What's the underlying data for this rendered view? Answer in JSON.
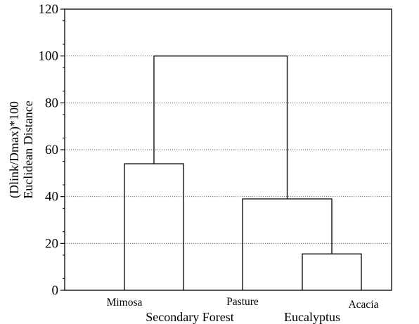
{
  "chart_data": {
    "type": "dendrogram",
    "ylabel_line1": "(Dlink/Dmax)*100",
    "ylabel_line2": "Euclidean Distance",
    "ylim": [
      0,
      120
    ],
    "yticks": [
      0,
      20,
      40,
      60,
      80,
      100,
      120
    ],
    "grid": "horizontal dotted",
    "leaves": [
      "Mimosa",
      "Secondary Forest",
      "Pasture",
      "Eucalyptus",
      "Acacia"
    ],
    "top_leaf_labels": [
      "Mimosa",
      "Pasture",
      "Acacia"
    ],
    "bottom_leaf_labels": [
      "Secondary Forest",
      "Eucalyptus"
    ],
    "merges": [
      {
        "left": 3,
        "right": 4,
        "height": 15.5
      },
      {
        "left": 2,
        "right": "merge0",
        "height": 39
      },
      {
        "left": 0,
        "right": 1,
        "height": 54
      },
      {
        "left": "merge2",
        "right": "merge1",
        "height": 100
      }
    ]
  }
}
